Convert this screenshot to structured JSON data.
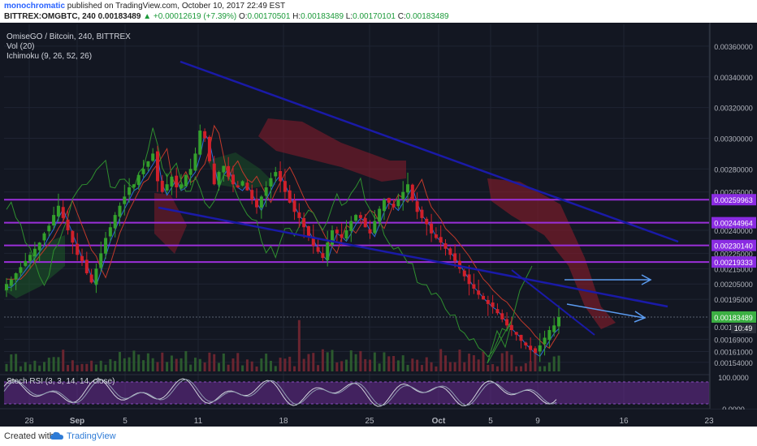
{
  "header": {
    "author": "monochromatic",
    "published_text": "published on TradingView.com, October 10, 2017 22:49 EST",
    "symbol": "BITTREX:OMGBTC, 240",
    "price": "0.00183489",
    "change": "+0.00012619 (+7.39%)",
    "o_label": "O:",
    "o_value": "0.00170501",
    "h_label": "H:",
    "h_value": "0.00183489",
    "l_label": "L:",
    "l_value": "0.00170101",
    "c_label": "C:",
    "c_value": "0.00183489"
  },
  "legend": {
    "title": "OmiseGO / Bitcoin, 240, BITTREX",
    "vol": "Vol (20)",
    "ichimoku": "Ichimoku (9, 26, 52, 26)",
    "stoch": "Stoch RSI (3, 3, 14, 14, close)"
  },
  "footer": {
    "created": "Created with",
    "brand": "TradingView"
  },
  "countdown": "10:49",
  "colors": {
    "background": "#131722",
    "candle_up": "#33a02c",
    "candle_down": "#d0202a",
    "trendline": "#1a1aa8",
    "level_line": "#9b2fd9",
    "level_label": "#8a2be2",
    "arrow": "#5b9bf0",
    "cloud_bear": "#8b1c2c",
    "cloud_bull": "#1d5a2a",
    "stoch_band": "#6a2c91",
    "last_price": "#3cb043"
  },
  "chart_data": {
    "type": "candlestick",
    "y_ticks": [
      "0.00360000",
      "0.00340000",
      "0.00320000",
      "0.00300000",
      "0.00280000",
      "0.00265000",
      "0.00240000",
      "0.00225000",
      "0.00215000",
      "0.00205000",
      "0.00195000",
      "0.00177000",
      "0.00169000",
      "0.00161000",
      "0.00154000"
    ],
    "y_tick_values": [
      0.0036,
      0.0034,
      0.0032,
      0.003,
      0.0028,
      0.00265,
      0.0024,
      0.00225,
      0.00215,
      0.00205,
      0.00195,
      0.00177,
      0.00169,
      0.00161,
      0.00154
    ],
    "x_ticks": [
      "28",
      "Sep",
      "5",
      "11",
      "18",
      "25",
      "Oct",
      "5",
      "9",
      "16",
      "23"
    ],
    "horizontal_levels": [
      {
        "label": "0.00259963",
        "value": 0.00259963
      },
      {
        "label": "0.00244964",
        "value": 0.00244964
      },
      {
        "label": "0.00230140",
        "value": 0.0023014
      },
      {
        "label": "0.00219333",
        "value": 0.00219333
      }
    ],
    "last_price": {
      "label": "0.00183489",
      "value": 0.00183489
    },
    "closes": [
      0.00205,
      0.00208,
      0.00212,
      0.00216,
      0.0022,
      0.00224,
      0.00228,
      0.00232,
      0.00238,
      0.00243,
      0.0025,
      0.00256,
      0.00248,
      0.0024,
      0.00232,
      0.00224,
      0.0022,
      0.00212,
      0.00206,
      0.00215,
      0.00225,
      0.00235,
      0.00242,
      0.0025,
      0.00256,
      0.00262,
      0.00268,
      0.0027,
      0.00276,
      0.0028,
      0.00285,
      0.0029,
      0.00272,
      0.00265,
      0.0027,
      0.00275,
      0.00268,
      0.0027,
      0.00276,
      0.0028,
      0.0029,
      0.00305,
      0.003,
      0.00285,
      0.0027,
      0.00278,
      0.00282,
      0.00275,
      0.0027,
      0.00268,
      0.00272,
      0.00266,
      0.0026,
      0.00255,
      0.00262,
      0.00268,
      0.00274,
      0.00278,
      0.00272,
      0.00265,
      0.00258,
      0.00252,
      0.00248,
      0.00242,
      0.00236,
      0.0023,
      0.00226,
      0.00222,
      0.00232,
      0.0024,
      0.00238,
      0.00235,
      0.0024,
      0.00246,
      0.0025,
      0.00248,
      0.00242,
      0.00238,
      0.00246,
      0.00254,
      0.0026,
      0.00258,
      0.00255,
      0.0026,
      0.00265,
      0.0027,
      0.0026,
      0.00252,
      0.00248,
      0.00244,
      0.00238,
      0.00235,
      0.00232,
      0.00228,
      0.00224,
      0.0022,
      0.00215,
      0.0021,
      0.00205,
      0.00202,
      0.00198,
      0.00195,
      0.00192,
      0.0019,
      0.00186,
      0.00182,
      0.00178,
      0.00175,
      0.00172,
      0.00168,
      0.00165,
      0.00162,
      0.0016,
      0.00165,
      0.0017,
      0.00175,
      0.00178,
      0.00183489
    ],
    "stoch_rsi": {
      "ylim": [
        0,
        100
      ],
      "ticks": [
        "100.0000",
        "0.0000"
      ]
    }
  }
}
